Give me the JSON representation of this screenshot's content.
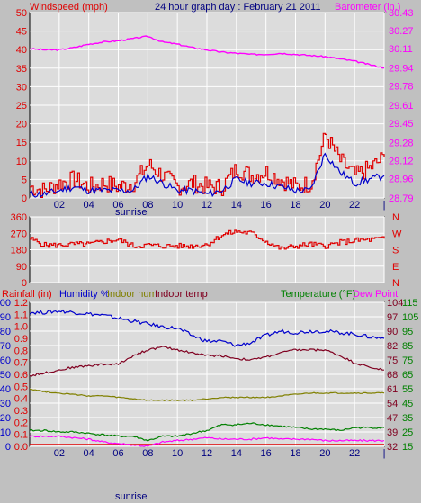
{
  "title": "24 hour graph day : February 21 2011",
  "colors": {
    "background": "#c0c0c0",
    "plot": "#dcdcdc",
    "grid": "#ffffff",
    "windspeed": "#e00000",
    "windavg": "#0000cc",
    "barometer": "#ff00ff",
    "direction": "#e00000",
    "rainfall": "#e00000",
    "humidity": "#0000cc",
    "indoor_hum": "#808000",
    "indoor_temp": "#800020",
    "temperature": "#008000",
    "dew_point": "#ff00ff"
  },
  "x_ticks": [
    "02",
    "04",
    "06",
    "08",
    "10",
    "12",
    "14",
    "16",
    "18",
    "20",
    "22",
    "|"
  ],
  "sunrise_label": "sunrise",
  "chart_data": [
    {
      "type": "line",
      "ylabel_left": "Windspeed (mph)",
      "ylabel_right": "Barometer (in.)",
      "ylim_left": [
        0,
        50
      ],
      "ylim_right": [
        28.79,
        30.43
      ],
      "yticks_left": [
        "0",
        "5",
        "10",
        "15",
        "20",
        "25",
        "30",
        "35",
        "40",
        "45",
        "50"
      ],
      "yticks_right": [
        "28.79",
        "28.96",
        "29.12",
        "29.28",
        "29.45",
        "29.61",
        "29.78",
        "29.94",
        "30.11",
        "30.27",
        "30.43"
      ],
      "x": [
        0,
        1,
        2,
        3,
        4,
        5,
        6,
        7,
        8,
        9,
        10,
        11,
        12,
        13,
        14,
        15,
        16,
        17,
        18,
        19,
        20,
        21,
        22,
        23,
        24
      ],
      "series": [
        {
          "axis": "left",
          "values": [
            3,
            2,
            4,
            5,
            3,
            4,
            3,
            4,
            9,
            6,
            3,
            4,
            3,
            3,
            8,
            6,
            7,
            5,
            3,
            4,
            17,
            10,
            6,
            8,
            11
          ]
        },
        {
          "axis": "left",
          "values": [
            1,
            1,
            2,
            3,
            2,
            2,
            2,
            2,
            6,
            4,
            2,
            2,
            1,
            2,
            5,
            4,
            4,
            3,
            2,
            2,
            12,
            7,
            4,
            5,
            6
          ]
        },
        {
          "axis": "right",
          "values": [
            30.11,
            30.1,
            30.1,
            30.12,
            30.15,
            30.17,
            30.18,
            30.2,
            30.22,
            30.17,
            30.15,
            30.12,
            30.1,
            30.08,
            30.07,
            30.06,
            30.06,
            30.07,
            30.06,
            30.05,
            30.04,
            30.02,
            30.0,
            29.97,
            29.94
          ]
        }
      ]
    },
    {
      "type": "line",
      "yticks_left": [
        "0",
        "90",
        "180",
        "270",
        "360"
      ],
      "yticks_right": [
        "N",
        "E",
        "S",
        "W",
        "N"
      ],
      "ylim": [
        0,
        360
      ],
      "x": [
        0,
        1,
        2,
        3,
        4,
        5,
        6,
        7,
        8,
        9,
        10,
        11,
        12,
        13,
        14,
        15,
        16,
        17,
        18,
        19,
        20,
        21,
        22,
        23,
        24
      ],
      "series": [
        {
          "values": [
            240,
            205,
            205,
            210,
            210,
            225,
            235,
            200,
            205,
            200,
            200,
            200,
            210,
            260,
            280,
            270,
            225,
            185,
            200,
            210,
            200,
            220,
            230,
            235,
            240
          ]
        }
      ]
    },
    {
      "type": "line",
      "legend": [
        "Rainfall (in)",
        "Humidity %",
        "Indoor hum",
        "Indoor temp",
        "Temperature (°F)",
        "Dew Point"
      ],
      "yticks_rain": [
        "0.0",
        "0.1",
        "0.2",
        "0.3",
        "0.4",
        "0.5",
        "0.6",
        "0.7",
        "0.8",
        "0.9",
        "1.0",
        "1.1",
        "1.2"
      ],
      "yticks_humidity": [
        "0",
        "10",
        "20",
        "30",
        "40",
        "50",
        "60",
        "70",
        "80",
        "90",
        "100"
      ],
      "yticks_right_inner": [
        "32",
        "39",
        "47",
        "54",
        "61",
        "68",
        "75",
        "82",
        "90",
        "97",
        "104"
      ],
      "yticks_right_outer": [
        "15",
        "25",
        "35",
        "45",
        "55",
        "65",
        "75",
        "85",
        "95",
        "105",
        "115"
      ],
      "ylim_humidity": [
        0,
        100
      ],
      "ylim_temperature": [
        15,
        115
      ],
      "x": [
        0,
        1,
        2,
        3,
        4,
        5,
        6,
        7,
        8,
        9,
        10,
        11,
        12,
        13,
        14,
        15,
        16,
        17,
        18,
        19,
        20,
        21,
        22,
        23,
        24
      ],
      "series": [
        {
          "values": [
            0,
            0,
            0,
            0,
            0,
            0,
            0,
            0,
            0,
            0,
            0,
            0,
            0,
            0,
            0,
            0,
            0,
            0,
            0,
            0,
            0,
            0,
            0,
            0,
            0
          ]
        },
        {
          "values": [
            93,
            93,
            94,
            93,
            92,
            91,
            89,
            87,
            85,
            83,
            82,
            77,
            73,
            73,
            70,
            72,
            77,
            80,
            79,
            80,
            80,
            79,
            78,
            76,
            75
          ]
        },
        {
          "values": [
            40,
            38,
            37,
            36,
            35,
            35,
            34,
            33,
            32,
            32,
            32,
            32,
            33,
            34,
            34,
            34,
            34,
            35,
            36,
            37,
            37,
            37,
            37,
            37,
            37
          ]
        },
        {
          "values": [
            64,
            66,
            68,
            70,
            71,
            72,
            72,
            78,
            82,
            84,
            82,
            80,
            78,
            78,
            76,
            75,
            77,
            80,
            82,
            82,
            82,
            78,
            73,
            70,
            68
          ]
        },
        {
          "values": [
            26,
            26,
            25,
            25,
            24,
            23,
            22,
            22,
            19,
            22,
            22,
            24,
            26,
            30,
            30,
            31,
            30,
            29,
            28,
            27,
            27,
            26,
            28,
            28,
            28
          ]
        },
        {
          "values": [
            22,
            22,
            22,
            21,
            20,
            18,
            17,
            16,
            15,
            18,
            19,
            20,
            21,
            20,
            20,
            20,
            21,
            20,
            20,
            20,
            19,
            19,
            19,
            19,
            19
          ]
        }
      ]
    }
  ]
}
